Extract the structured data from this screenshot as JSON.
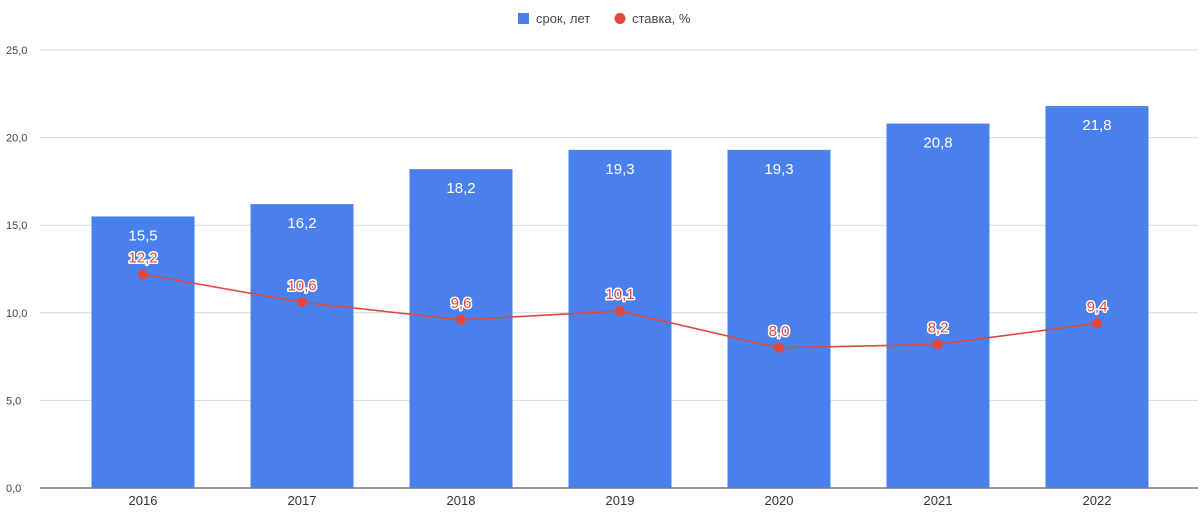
{
  "chart_data": {
    "type": "bar",
    "categories": [
      "2016",
      "2017",
      "2018",
      "2019",
      "2020",
      "2021",
      "2022"
    ],
    "series": [
      {
        "name": "срок, лет",
        "type": "bar",
        "color": "#4a80ec",
        "values": [
          15.5,
          16.2,
          18.2,
          19.3,
          19.3,
          20.8,
          21.8
        ],
        "labels": [
          "15,5",
          "16,2",
          "18,2",
          "19,3",
          "19,3",
          "20,8",
          "21,8"
        ]
      },
      {
        "name": "ставка, %",
        "type": "line",
        "color": "#e0483e",
        "values": [
          12.2,
          10.6,
          9.6,
          10.1,
          8.0,
          8.2,
          9.4
        ],
        "labels": [
          "12,2",
          "10,6",
          "9,6",
          "10,1",
          "8,0",
          "8,2",
          "9,4"
        ]
      }
    ],
    "ylim": [
      0,
      25
    ],
    "yticks": [
      0,
      5,
      10,
      15,
      20,
      25
    ],
    "ytick_labels": [
      "0,0",
      "5,0",
      "10,0",
      "15,0",
      "20,0",
      "25,0"
    ],
    "grid": true,
    "legend_position": "top-center",
    "title": "",
    "xlabel": "",
    "ylabel": ""
  }
}
